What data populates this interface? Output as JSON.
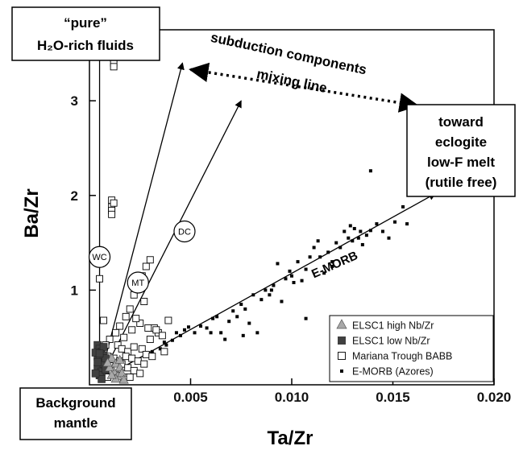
{
  "chart_data": {
    "type": "scatter",
    "xlabel": "Ta/Zr",
    "ylabel": "Ba/Zr",
    "xlim": [
      0,
      0.02
    ],
    "ylim": [
      0,
      3.75
    ],
    "x_ticks": [
      "0.005",
      "0.010",
      "0.015",
      "0.020"
    ],
    "y_ticks": [
      "1",
      "2",
      "3"
    ],
    "grid": false,
    "legend_position": "bottom-right",
    "legend": [
      {
        "name": "ELSC1 high Nb/Zr",
        "marker": "triangle",
        "color": "#a8a8a8"
      },
      {
        "name": "ELSC1 low Nb/Zr",
        "marker": "square-filled",
        "color": "#404040"
      },
      {
        "name": "Mariana Trough BABB",
        "marker": "square-open",
        "color": "#ffffff"
      },
      {
        "name": "E-MORB (Azores)",
        "marker": "small-square",
        "color": "#000000"
      }
    ],
    "series": [
      {
        "name": "E-MORB (Azores)",
        "points": [
          [
            0.0028,
            0.32
          ],
          [
            0.0031,
            0.35
          ],
          [
            0.0035,
            0.38
          ],
          [
            0.0038,
            0.42
          ],
          [
            0.0041,
            0.47
          ],
          [
            0.0043,
            0.55
          ],
          [
            0.0045,
            0.52
          ],
          [
            0.0047,
            0.58
          ],
          [
            0.0049,
            0.61
          ],
          [
            0.0052,
            0.55
          ],
          [
            0.0055,
            0.62
          ],
          [
            0.0058,
            0.6
          ],
          [
            0.0061,
            0.7
          ],
          [
            0.0063,
            0.72
          ],
          [
            0.0065,
            0.55
          ],
          [
            0.0067,
            0.48
          ],
          [
            0.0069,
            0.67
          ],
          [
            0.0071,
            0.78
          ],
          [
            0.0073,
            0.72
          ],
          [
            0.0075,
            0.85
          ],
          [
            0.0077,
            0.8
          ],
          [
            0.0079,
            0.65
          ],
          [
            0.0081,
            0.95
          ],
          [
            0.0083,
            0.55
          ],
          [
            0.0085,
            0.9
          ],
          [
            0.0087,
            1.0
          ],
          [
            0.0089,
            0.95
          ],
          [
            0.0091,
            1.05
          ],
          [
            0.0093,
            1.28
          ],
          [
            0.0095,
            0.88
          ],
          [
            0.0097,
            1.12
          ],
          [
            0.0099,
            1.2
          ],
          [
            0.0101,
            1.08
          ],
          [
            0.0103,
            1.3
          ],
          [
            0.0105,
            1.1
          ],
          [
            0.0107,
            1.22
          ],
          [
            0.0109,
            1.35
          ],
          [
            0.0111,
            1.45
          ],
          [
            0.0113,
            1.52
          ],
          [
            0.0114,
            1.35
          ],
          [
            0.0116,
            1.18
          ],
          [
            0.0118,
            1.4
          ],
          [
            0.012,
            1.3
          ],
          [
            0.0122,
            1.5
          ],
          [
            0.0124,
            1.45
          ],
          [
            0.0126,
            1.62
          ],
          [
            0.0128,
            1.55
          ],
          [
            0.0129,
            1.68
          ],
          [
            0.013,
            1.52
          ],
          [
            0.0131,
            1.65
          ],
          [
            0.0133,
            1.55
          ],
          [
            0.0135,
            1.48
          ],
          [
            0.0137,
            1.58
          ],
          [
            0.0139,
            1.63
          ],
          [
            0.0142,
            1.7
          ],
          [
            0.0145,
            1.62
          ],
          [
            0.0148,
            1.55
          ],
          [
            0.0151,
            1.72
          ],
          [
            0.0155,
            1.88
          ],
          [
            0.0157,
            1.7
          ],
          [
            0.0139,
            2.26
          ],
          [
            0.0163,
            2.44
          ],
          [
            0.0107,
            0.7
          ],
          [
            0.009,
            1.0
          ],
          [
            0.0076,
            0.52
          ],
          [
            0.006,
            0.55
          ],
          [
            0.01,
            1.15
          ],
          [
            0.012,
            1.25
          ],
          [
            0.0134,
            1.62
          ],
          [
            0.0037,
            0.45
          ]
        ]
      },
      {
        "name": "Mariana Trough BABB",
        "points": [
          [
            0.0012,
            3.45
          ],
          [
            0.0012,
            3.4
          ],
          [
            0.0012,
            3.36
          ],
          [
            0.0011,
            1.95
          ],
          [
            0.0011,
            1.88
          ],
          [
            0.0011,
            1.84
          ],
          [
            0.0012,
            1.92
          ],
          [
            0.0011,
            1.8
          ],
          [
            0.0005,
            1.12
          ],
          [
            0.0007,
            0.68
          ],
          [
            0.0015,
            0.62
          ],
          [
            0.0018,
            0.72
          ],
          [
            0.002,
            0.8
          ],
          [
            0.0022,
            0.95
          ],
          [
            0.0024,
            1.05
          ],
          [
            0.0026,
            1.15
          ],
          [
            0.0028,
            1.25
          ],
          [
            0.003,
            1.32
          ],
          [
            0.0027,
            0.88
          ],
          [
            0.0032,
            0.6
          ],
          [
            0.0034,
            0.55
          ],
          [
            0.0036,
            0.52
          ],
          [
            0.003,
            0.48
          ],
          [
            0.0025,
            0.65
          ],
          [
            0.0021,
            0.58
          ],
          [
            0.0017,
            0.5
          ],
          [
            0.0013,
            0.55
          ],
          [
            0.001,
            0.48
          ],
          [
            0.0008,
            0.42
          ],
          [
            0.0014,
            0.42
          ],
          [
            0.0016,
            0.38
          ],
          [
            0.0019,
            0.35
          ],
          [
            0.0022,
            0.4
          ],
          [
            0.0026,
            0.38
          ],
          [
            0.0028,
            0.32
          ],
          [
            0.0031,
            0.3
          ],
          [
            0.0009,
            0.3
          ],
          [
            0.0012,
            0.28
          ],
          [
            0.0015,
            0.25
          ],
          [
            0.0018,
            0.3
          ],
          [
            0.0021,
            0.28
          ],
          [
            0.0024,
            0.25
          ],
          [
            0.0027,
            0.22
          ],
          [
            0.0007,
            0.22
          ],
          [
            0.001,
            0.2
          ],
          [
            0.0013,
            0.18
          ],
          [
            0.0016,
            0.22
          ],
          [
            0.0019,
            0.18
          ],
          [
            0.0022,
            0.15
          ],
          [
            0.0025,
            0.12
          ],
          [
            0.0011,
            0.12
          ],
          [
            0.0014,
            0.1
          ],
          [
            0.0017,
            0.08
          ],
          [
            0.002,
            0.08
          ],
          [
            0.0009,
            0.08
          ],
          [
            0.0033,
            0.58
          ],
          [
            0.0039,
            0.68
          ],
          [
            0.0023,
            0.7
          ],
          [
            0.0037,
            0.35
          ],
          [
            0.0029,
            0.6
          ]
        ]
      },
      {
        "name": "ELSC1 low Nb/Zr",
        "points": [
          [
            0.0004,
            0.42
          ],
          [
            0.0005,
            0.38
          ],
          [
            0.0006,
            0.35
          ],
          [
            0.0004,
            0.3
          ],
          [
            0.0005,
            0.27
          ],
          [
            0.0006,
            0.24
          ],
          [
            0.0005,
            0.2
          ],
          [
            0.0004,
            0.17
          ],
          [
            0.0006,
            0.14
          ],
          [
            0.0007,
            0.31
          ],
          [
            0.0005,
            0.1
          ],
          [
            0.0007,
            0.22
          ],
          [
            0.0004,
            0.24
          ],
          [
            0.0006,
            0.06
          ],
          [
            0.0008,
            0.16
          ],
          [
            0.0003,
            0.34
          ],
          [
            0.0008,
            0.28
          ],
          [
            0.0007,
            0.4
          ],
          [
            0.0003,
            0.12
          ],
          [
            0.0005,
            0.33
          ]
        ]
      },
      {
        "name": "ELSC1 high Nb/Zr",
        "points": [
          [
            0.0011,
            0.28
          ],
          [
            0.0013,
            0.22
          ],
          [
            0.0015,
            0.18
          ],
          [
            0.0012,
            0.14
          ],
          [
            0.0014,
            0.09
          ],
          [
            0.0016,
            0.12
          ],
          [
            0.001,
            0.18
          ],
          [
            0.0013,
            0.06
          ],
          [
            0.0017,
            0.05
          ],
          [
            0.0011,
            0.1
          ],
          [
            0.0009,
            0.23
          ],
          [
            0.0015,
            0.26
          ]
        ]
      }
    ],
    "annotations": {
      "pure_box": [
        "“pure”",
        "H₂O-rich fluids"
      ],
      "eclogite_box": [
        "toward",
        "eclogite",
        "low-F melt",
        "(rutile free)"
      ],
      "background_box": [
        "Background",
        "mantle"
      ],
      "mixing_label": [
        "subduction components",
        "mixing line"
      ],
      "emorb_label": "E-MORB",
      "ray_labels": [
        "WC",
        "MT",
        "DC"
      ]
    },
    "rays": [
      {
        "label": "WC",
        "from": [
          0.0005,
          0.05
        ],
        "to": [
          0.0005,
          3.55
        ],
        "label_at": [
          0.0005,
          1.35
        ]
      },
      {
        "label": "MT",
        "from": [
          0.0005,
          0.05
        ],
        "to": [
          0.0046,
          3.4
        ],
        "label_at": [
          0.0024,
          1.08
        ]
      },
      {
        "label": "DC",
        "from": [
          0.0005,
          0.05
        ],
        "to": [
          0.0075,
          3.0
        ],
        "label_at": [
          0.0047,
          1.62
        ]
      },
      {
        "label": "E-MORB",
        "from": [
          0.0005,
          0.05
        ],
        "to": [
          0.0171,
          2.02
        ],
        "label_at": [
          0.0122,
          1.18
        ]
      }
    ],
    "mixing_line": {
      "from": [
        0.005,
        3.33
      ],
      "to": [
        0.0162,
        2.95
      ]
    }
  }
}
